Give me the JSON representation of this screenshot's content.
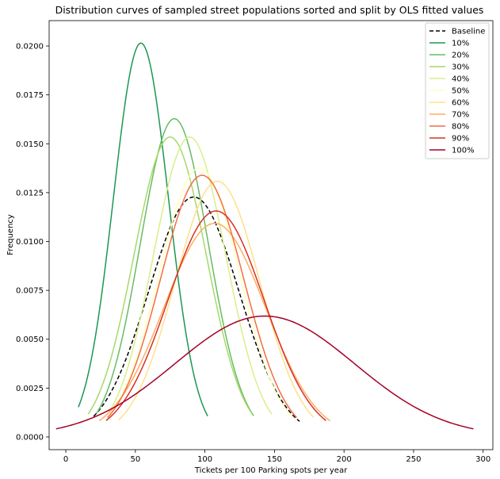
{
  "chart_data": {
    "type": "line",
    "title": "Distribution curves of sampled street populations sorted and split by OLS fitted values",
    "xlabel": "Tickets per 100 Parking spots per year",
    "ylabel": "Frequency",
    "xlim": [
      -12,
      307
    ],
    "ylim": [
      -0.00065,
      0.0213
    ],
    "x_ticks": [
      0,
      50,
      100,
      150,
      200,
      250,
      300
    ],
    "x_tick_labels": [
      "0",
      "50",
      "100",
      "150",
      "200",
      "250",
      "300"
    ],
    "y_ticks": [
      0.0,
      0.0025,
      0.005,
      0.0075,
      0.01,
      0.0125,
      0.015,
      0.0175,
      0.02
    ],
    "y_tick_labels": [
      "0.0000",
      "0.0025",
      "0.0050",
      "0.0075",
      "0.0100",
      "0.0125",
      "0.0150",
      "0.0175",
      "0.0200"
    ],
    "grid": false,
    "legend_position": "top-right",
    "curve_model": "normal density evaluated between x_start and x_end",
    "series": [
      {
        "name": "Baseline",
        "color": "#000000",
        "dashed": true,
        "mean": 92,
        "sd": 32.5,
        "x_start": 20,
        "x_end": 168
      },
      {
        "name": "10%",
        "color": "#1a9850",
        "dashed": false,
        "mean": 54,
        "sd": 19.8,
        "x_start": 9,
        "x_end": 102
      },
      {
        "name": "20%",
        "color": "#66bd63",
        "dashed": false,
        "mean": 78,
        "sd": 24.5,
        "x_start": 22,
        "x_end": 135
      },
      {
        "name": "30%",
        "color": "#a6d96a",
        "dashed": false,
        "mean": 75,
        "sd": 26.0,
        "x_start": 16,
        "x_end": 134
      },
      {
        "name": "40%",
        "color": "#d9ef8b",
        "dashed": false,
        "mean": 89,
        "sd": 26.0,
        "x_start": 30,
        "x_end": 148
      },
      {
        "name": "50%",
        "color": "#ffffbf",
        "dashed": false,
        "mean": 96,
        "sd": 29.0,
        "x_start": 30,
        "x_end": 162
      },
      {
        "name": "60%",
        "color": "#fee08b",
        "dashed": false,
        "mean": 109,
        "sd": 30.5,
        "x_start": 38,
        "x_end": 178
      },
      {
        "name": "70%",
        "color": "#fdae61",
        "dashed": false,
        "mean": 107,
        "sd": 36.5,
        "x_start": 24,
        "x_end": 190
      },
      {
        "name": "80%",
        "color": "#f46d43",
        "dashed": false,
        "mean": 98,
        "sd": 29.8,
        "x_start": 30,
        "x_end": 166
      },
      {
        "name": "90%",
        "color": "#d73027",
        "dashed": false,
        "mean": 108,
        "sd": 34.5,
        "x_start": 29,
        "x_end": 187
      },
      {
        "name": "100%",
        "color": "#a50026",
        "dashed": false,
        "mean": 143,
        "sd": 64.5,
        "x_start": -7,
        "x_end": 293
      }
    ]
  }
}
